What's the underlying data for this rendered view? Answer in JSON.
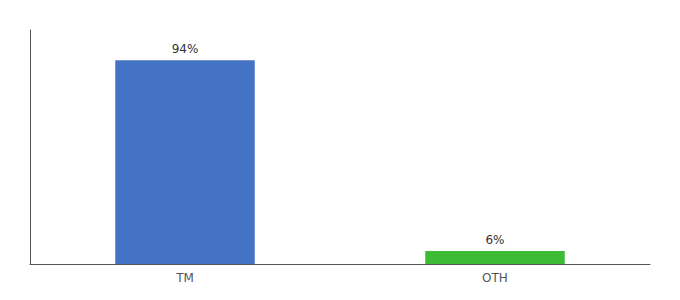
{
  "chart_data": {
    "type": "bar",
    "categories": [
      "TM",
      "OTH"
    ],
    "values": [
      94,
      6
    ],
    "value_labels": [
      "94%",
      "6%"
    ],
    "colors": [
      "#4472c4",
      "#3dbb35"
    ],
    "ylim": [
      0,
      108
    ],
    "grid": false,
    "data_labels": true,
    "tick_labels": "x"
  }
}
